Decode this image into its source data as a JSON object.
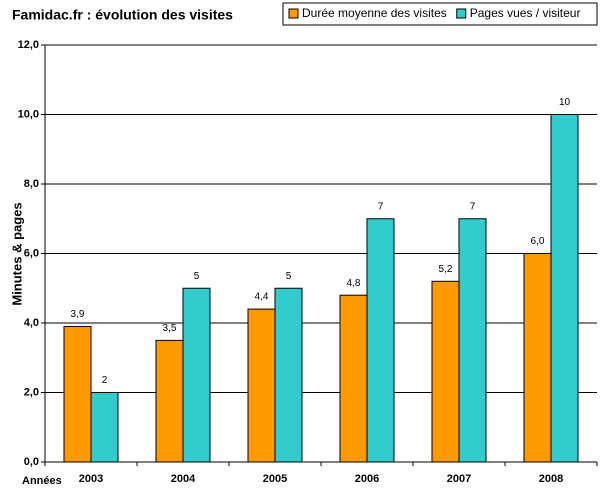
{
  "chart_data": {
    "type": "bar",
    "title": "Famidac.fr : évolution des visites",
    "y_label": "Minutes & pages",
    "x_label": "Années",
    "categories": [
      "2003",
      "2004",
      "2005",
      "2006",
      "2007",
      "2008"
    ],
    "series": [
      {
        "name": "Durée moyenne des visites",
        "color": "#ff9900",
        "values": [
          3.9,
          3.5,
          4.4,
          4.8,
          5.2,
          6.0
        ],
        "value_labels": [
          "3,9",
          "3,5",
          "4,4",
          "4,8",
          "5,2",
          "6,0"
        ]
      },
      {
        "name": "Pages vues / visiteur",
        "color": "#33cccc",
        "values": [
          2,
          5,
          5,
          7,
          7,
          10
        ]
      }
    ],
    "ylim": [
      0,
      12
    ],
    "yticks": [
      {
        "value": 0,
        "label": "0,0"
      },
      {
        "value": 2,
        "label": "2,0"
      },
      {
        "value": 4,
        "label": "4,0"
      },
      {
        "value": 6,
        "label": "6,0"
      },
      {
        "value": 8,
        "label": "8,0"
      },
      {
        "value": 10,
        "label": "10,0"
      },
      {
        "value": 12,
        "label": "12,0"
      }
    ],
    "grid": true
  }
}
